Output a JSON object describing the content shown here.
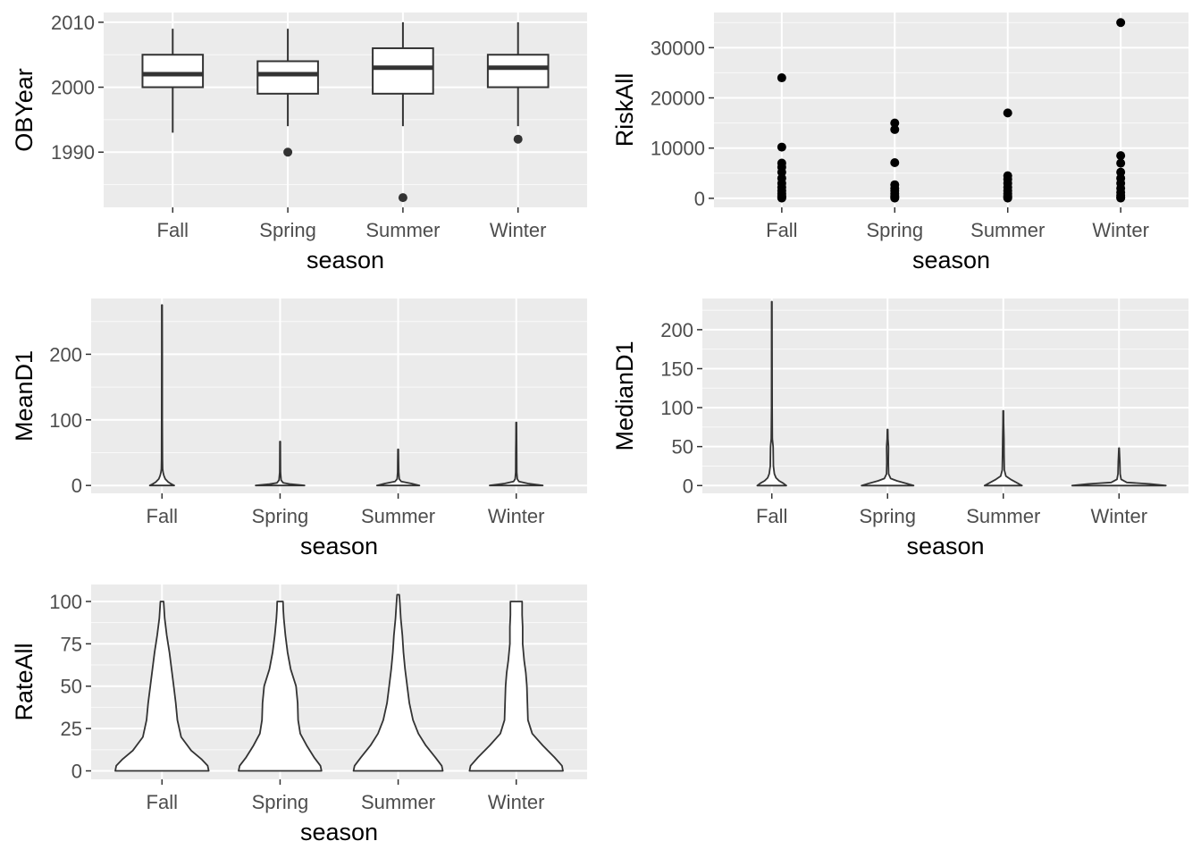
{
  "chart_data": [
    {
      "id": "obyear",
      "type": "box",
      "categories": [
        "Fall",
        "Spring",
        "Summer",
        "Winter"
      ],
      "xlabel": "season",
      "ylabel": "OBYear",
      "ylim": [
        1981.5,
        2011.5
      ],
      "yticks": [
        1990,
        2000,
        2010
      ],
      "yminor": [
        1985,
        1995,
        2005
      ],
      "boxes": [
        {
          "lower": 1993,
          "q1": 2000,
          "median": 2002,
          "q3": 2005,
          "upper": 2009,
          "outliers": []
        },
        {
          "lower": 1994,
          "q1": 1999,
          "median": 2002,
          "q3": 2004,
          "upper": 2009,
          "outliers": [
            1990
          ]
        },
        {
          "lower": 1994,
          "q1": 1999,
          "median": 2003,
          "q3": 2006,
          "upper": 2010,
          "outliers": [
            1983
          ]
        },
        {
          "lower": 1994,
          "q1": 2000,
          "median": 2003,
          "q3": 2005,
          "upper": 2010,
          "outliers": [
            1992
          ]
        }
      ]
    },
    {
      "id": "riskall",
      "type": "scatter",
      "categories": [
        "Fall",
        "Spring",
        "Summer",
        "Winter"
      ],
      "xlabel": "season",
      "ylabel": "RiskAll",
      "ylim": [
        -1800,
        37000
      ],
      "yticks": [
        0,
        10000,
        20000,
        30000
      ],
      "yminor": [
        5000,
        15000,
        25000,
        35000
      ],
      "points": [
        [
          24000,
          10200,
          7000,
          6200,
          5200,
          4000,
          3000,
          2200,
          1500,
          900,
          500,
          200,
          50
        ],
        [
          15000,
          13700,
          7100,
          2700,
          2000,
          1500,
          900,
          500,
          200,
          50
        ],
        [
          17000,
          4500,
          3800,
          3000,
          2200,
          1500,
          900,
          500,
          200,
          50
        ],
        [
          35000,
          8500,
          7000,
          5200,
          4000,
          3000,
          2000,
          1200,
          600,
          200,
          50
        ]
      ]
    },
    {
      "id": "meand1",
      "type": "violin",
      "categories": [
        "Fall",
        "Spring",
        "Summer",
        "Winter"
      ],
      "xlabel": "season",
      "ylabel": "MeanD1",
      "ylim": [
        -12,
        285
      ],
      "yticks": [
        0,
        100,
        200
      ],
      "yminor": [
        50,
        150,
        250
      ],
      "violins": [
        [
          [
            0,
            0.23
          ],
          [
            2,
            0.18
          ],
          [
            5,
            0.12
          ],
          [
            10,
            0.06
          ],
          [
            15,
            0.035
          ],
          [
            20,
            0.02
          ],
          [
            25,
            0.012
          ],
          [
            40,
            0.008
          ],
          [
            100,
            0.006
          ],
          [
            200,
            0.005
          ],
          [
            275,
            0.004
          ]
        ],
        [
          [
            0,
            0.46
          ],
          [
            2,
            0.2
          ],
          [
            4,
            0.06
          ],
          [
            8,
            0.02
          ],
          [
            20,
            0.008
          ],
          [
            40,
            0.006
          ],
          [
            67,
            0.004
          ]
        ],
        [
          [
            0,
            0.4
          ],
          [
            3,
            0.25
          ],
          [
            6,
            0.06
          ],
          [
            10,
            0.02
          ],
          [
            20,
            0.01
          ],
          [
            35,
            0.008
          ],
          [
            55,
            0.004
          ]
        ],
        [
          [
            0,
            0.5
          ],
          [
            3,
            0.22
          ],
          [
            6,
            0.05
          ],
          [
            10,
            0.02
          ],
          [
            20,
            0.01
          ],
          [
            50,
            0.008
          ],
          [
            70,
            0.006
          ],
          [
            96,
            0.004
          ]
        ]
      ]
    },
    {
      "id": "mediand1",
      "type": "violin",
      "categories": [
        "Fall",
        "Spring",
        "Summer",
        "Winter"
      ],
      "xlabel": "season",
      "ylabel": "MedianD1",
      "ylim": [
        -10,
        240
      ],
      "yticks": [
        0,
        50,
        100,
        150,
        200
      ],
      "yminor": [
        25,
        75,
        125,
        175,
        225
      ],
      "violins": [
        [
          [
            0,
            0.28
          ],
          [
            3,
            0.22
          ],
          [
            6,
            0.14
          ],
          [
            10,
            0.08
          ],
          [
            15,
            0.05
          ],
          [
            25,
            0.03
          ],
          [
            50,
            0.025
          ],
          [
            60,
            0.01
          ],
          [
            100,
            0.006
          ],
          [
            236,
            0.004
          ]
        ],
        [
          [
            0,
            0.5
          ],
          [
            3,
            0.35
          ],
          [
            6,
            0.18
          ],
          [
            9,
            0.06
          ],
          [
            15,
            0.02
          ],
          [
            30,
            0.015
          ],
          [
            50,
            0.018
          ],
          [
            60,
            0.008
          ],
          [
            72,
            0.004
          ]
        ],
        [
          [
            0,
            0.36
          ],
          [
            4,
            0.25
          ],
          [
            8,
            0.14
          ],
          [
            12,
            0.05
          ],
          [
            20,
            0.02
          ],
          [
            40,
            0.015
          ],
          [
            60,
            0.012
          ],
          [
            80,
            0.006
          ],
          [
            96,
            0.004
          ]
        ],
        [
          [
            0,
            0.9
          ],
          [
            2,
            0.6
          ],
          [
            4,
            0.15
          ],
          [
            8,
            0.04
          ],
          [
            15,
            0.02
          ],
          [
            30,
            0.015
          ],
          [
            48,
            0.004
          ]
        ]
      ]
    },
    {
      "id": "rateall",
      "type": "violin",
      "categories": [
        "Fall",
        "Spring",
        "Summer",
        "Winter"
      ],
      "xlabel": "season",
      "ylabel": "RateAll",
      "ylim": [
        -5,
        110
      ],
      "yticks": [
        0,
        25,
        50,
        75,
        100
      ],
      "yminor": [
        12.5,
        37.5,
        62.5,
        87.5
      ],
      "violins": [
        [
          [
            0,
            0.88
          ],
          [
            3,
            0.86
          ],
          [
            7,
            0.74
          ],
          [
            12,
            0.55
          ],
          [
            20,
            0.36
          ],
          [
            30,
            0.29
          ],
          [
            40,
            0.26
          ],
          [
            50,
            0.22
          ],
          [
            60,
            0.18
          ],
          [
            70,
            0.14
          ],
          [
            80,
            0.09
          ],
          [
            90,
            0.05
          ],
          [
            100,
            0.03
          ]
        ],
        [
          [
            0,
            0.78
          ],
          [
            3,
            0.76
          ],
          [
            8,
            0.64
          ],
          [
            15,
            0.5
          ],
          [
            22,
            0.38
          ],
          [
            30,
            0.34
          ],
          [
            40,
            0.33
          ],
          [
            50,
            0.3
          ],
          [
            60,
            0.2
          ],
          [
            70,
            0.14
          ],
          [
            80,
            0.1
          ],
          [
            90,
            0.07
          ],
          [
            95,
            0.06
          ],
          [
            100,
            0.055
          ]
        ],
        [
          [
            0,
            0.84
          ],
          [
            3,
            0.82
          ],
          [
            8,
            0.7
          ],
          [
            15,
            0.52
          ],
          [
            22,
            0.38
          ],
          [
            30,
            0.28
          ],
          [
            40,
            0.21
          ],
          [
            50,
            0.17
          ],
          [
            60,
            0.13
          ],
          [
            70,
            0.1
          ],
          [
            80,
            0.08
          ],
          [
            90,
            0.05
          ],
          [
            100,
            0.03
          ],
          [
            104,
            0.02
          ]
        ],
        [
          [
            0,
            0.88
          ],
          [
            3,
            0.86
          ],
          [
            8,
            0.72
          ],
          [
            15,
            0.5
          ],
          [
            22,
            0.3
          ],
          [
            30,
            0.22
          ],
          [
            40,
            0.21
          ],
          [
            50,
            0.2
          ],
          [
            58,
            0.18
          ],
          [
            65,
            0.15
          ],
          [
            75,
            0.12
          ],
          [
            85,
            0.12
          ],
          [
            92,
            0.11
          ],
          [
            100,
            0.11
          ]
        ]
      ]
    }
  ]
}
